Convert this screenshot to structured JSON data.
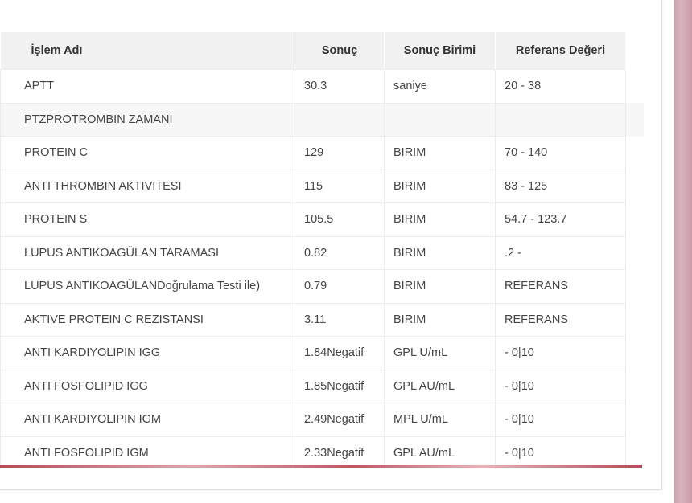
{
  "table": {
    "headers": {
      "name": "İşlem Adı",
      "result": "Sonuç",
      "unit": "Sonuç Birimi",
      "reference": "Referans Değeri"
    },
    "rows": [
      {
        "name": "APTT",
        "result": "30.3",
        "unit": "saniye",
        "reference": "20 - 38"
      },
      {
        "name": "PTZPROTROMBIN ZAMANI",
        "result": "",
        "unit": "",
        "reference": ""
      },
      {
        "name": "PROTEIN C",
        "result": "129",
        "unit": "BIRIM",
        "reference": "70 - 140"
      },
      {
        "name": "ANTI THROMBIN AKTIVITESI",
        "result": "115",
        "unit": "BIRIM",
        "reference": "83 - 125"
      },
      {
        "name": "PROTEIN S",
        "result": "105.5",
        "unit": "BIRIM",
        "reference": "54.7 - 123.7"
      },
      {
        "name": "LUPUS ANTIKOAGÜLAN TARAMASI",
        "result": "0.82",
        "unit": "BIRIM",
        "reference": ".2 -"
      },
      {
        "name": "LUPUS ANTIKOAGÜLANDoğrulama Testi ile)",
        "result": "0.79",
        "unit": "BIRIM",
        "reference": "REFERANS"
      },
      {
        "name": "AKTIVE PROTEIN C REZISTANSI",
        "result": "3.11",
        "unit": "BIRIM",
        "reference": "REFERANS"
      },
      {
        "name": "ANTI KARDIYOLIPIN IGG",
        "result": "1.84Negatif",
        "unit": "GPL U/mL",
        "reference": "- 0|10"
      },
      {
        "name": "ANTI FOSFOLIPID IGG",
        "result": "1.85Negatif",
        "unit": "GPL AU/mL",
        "reference": "- 0|10"
      },
      {
        "name": "ANTI KARDIYOLIPIN IGM",
        "result": "2.49Negatif",
        "unit": "MPL U/mL",
        "reference": "- 0|10"
      },
      {
        "name": "ANTI FOSFOLIPID IGM",
        "result": "2.33Negatif",
        "unit": "GPL AU/mL",
        "reference": "- 0|10"
      }
    ]
  },
  "colors": {
    "header_bg": "#f1f1f1",
    "accent_bar": "#b84a5a",
    "side_strip": "#cba4ad"
  }
}
